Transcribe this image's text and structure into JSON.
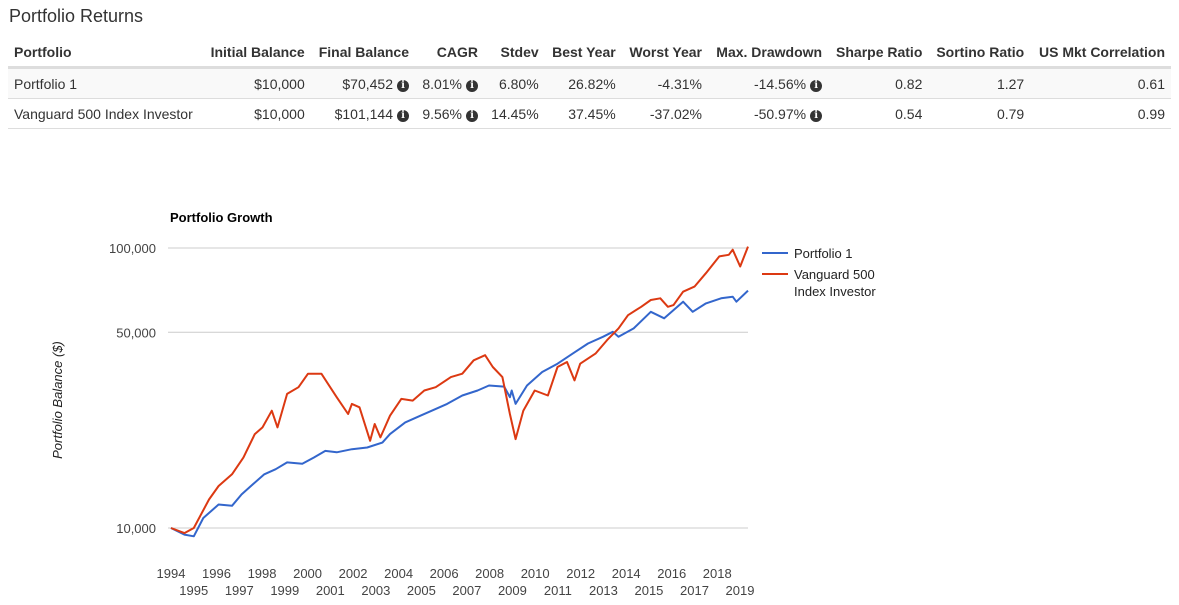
{
  "section_title": "Portfolio Returns",
  "table": {
    "headers": [
      "Portfolio",
      "Initial Balance",
      "Final Balance",
      "CAGR",
      "Stdev",
      "Best Year",
      "Worst Year",
      "Max. Drawdown",
      "Sharpe Ratio",
      "Sortino Ratio",
      "US Mkt Correlation"
    ],
    "rows": [
      {
        "portfolio": "Portfolio 1",
        "initial": "$10,000",
        "final": "$70,452",
        "cagr": "8.01%",
        "stdev": "6.80%",
        "best": "26.82%",
        "worst": "-4.31%",
        "drawdown": "-14.56%",
        "sharpe": "0.82",
        "sortino": "1.27",
        "corr": "0.61"
      },
      {
        "portfolio": "Vanguard 500 Index Investor",
        "initial": "$10,000",
        "final": "$101,144",
        "cagr": "9.56%",
        "stdev": "14.45%",
        "best": "37.45%",
        "worst": "-37.02%",
        "drawdown": "-50.97%",
        "sharpe": "0.54",
        "sortino": "0.79",
        "corr": "0.99"
      }
    ],
    "info_icon": "info-circle-icon"
  },
  "chart_data": {
    "type": "line",
    "title": "Portfolio Growth",
    "ylabel": "Portfolio Balance ($)",
    "xlabel": "",
    "yscale": "log",
    "ylim": [
      9000,
      105000
    ],
    "xlim": [
      1994,
      2019.35
    ],
    "yticks": [
      {
        "value": 10000,
        "label": "10,000"
      },
      {
        "value": 50000,
        "label": "50,000"
      },
      {
        "value": 100000,
        "label": "100,000"
      }
    ],
    "xticks": [
      "1994",
      "1995",
      "1996",
      "1997",
      "1998",
      "1999",
      "2000",
      "2001",
      "2002",
      "2003",
      "2004",
      "2005",
      "2006",
      "2007",
      "2008",
      "2009",
      "2010",
      "2011",
      "2012",
      "2013",
      "2014",
      "2015",
      "2016",
      "2017",
      "2018",
      "2019"
    ],
    "grid": true,
    "legend": "right",
    "series": [
      {
        "name": "Portfolio 1",
        "color": "#3366cc",
        "points": [
          [
            1994.0,
            10000
          ],
          [
            1994.59,
            9470
          ],
          [
            1995.0,
            9340
          ],
          [
            1995.42,
            10860
          ],
          [
            1996.09,
            12130
          ],
          [
            1996.68,
            12000
          ],
          [
            1997.1,
            13180
          ],
          [
            1997.6,
            14320
          ],
          [
            1998.1,
            15550
          ],
          [
            1998.6,
            16220
          ],
          [
            1999.1,
            17150
          ],
          [
            1999.77,
            16950
          ],
          [
            2000.27,
            17840
          ],
          [
            2000.78,
            18850
          ],
          [
            2001.28,
            18640
          ],
          [
            2001.95,
            19110
          ],
          [
            2002.62,
            19380
          ],
          [
            2003.29,
            20190
          ],
          [
            2003.62,
            21640
          ],
          [
            2004.29,
            23830
          ],
          [
            2004.96,
            25190
          ],
          [
            2005.46,
            26240
          ],
          [
            2006.13,
            27740
          ],
          [
            2006.8,
            29720
          ],
          [
            2007.47,
            30970
          ],
          [
            2007.97,
            32280
          ],
          [
            2008.64,
            32000
          ],
          [
            2008.89,
            29310
          ],
          [
            2008.97,
            30970
          ],
          [
            2009.14,
            27740
          ],
          [
            2009.64,
            32280
          ],
          [
            2010.31,
            36060
          ],
          [
            2010.98,
            38630
          ],
          [
            2011.65,
            41970
          ],
          [
            2012.32,
            45600
          ],
          [
            2012.99,
            48200
          ],
          [
            2013.41,
            50220
          ],
          [
            2013.66,
            48200
          ],
          [
            2014.33,
            51630
          ],
          [
            2015.08,
            59170
          ],
          [
            2015.67,
            56090
          ],
          [
            2016.5,
            64280
          ],
          [
            2016.92,
            59170
          ],
          [
            2017.5,
            63400
          ],
          [
            2018.17,
            66100
          ],
          [
            2018.68,
            67000
          ],
          [
            2018.84,
            64280
          ],
          [
            2019.35,
            70452
          ]
        ]
      },
      {
        "name": "Vanguard 500 Index Investor",
        "color": "#dc3912",
        "points": [
          [
            1994.0,
            10000
          ],
          [
            1994.59,
            9590
          ],
          [
            1995.0,
            10000
          ],
          [
            1995.67,
            12640
          ],
          [
            1996.09,
            14120
          ],
          [
            1996.68,
            15550
          ],
          [
            1997.18,
            17840
          ],
          [
            1997.68,
            21640
          ],
          [
            1998.02,
            22880
          ],
          [
            1998.43,
            26240
          ],
          [
            1998.68,
            22880
          ],
          [
            1999.1,
            30120
          ],
          [
            1999.6,
            31820
          ],
          [
            2000.02,
            35560
          ],
          [
            2000.61,
            35560
          ],
          [
            2001.28,
            29310
          ],
          [
            2001.78,
            25540
          ],
          [
            2001.95,
            27740
          ],
          [
            2002.28,
            26990
          ],
          [
            2002.75,
            20490
          ],
          [
            2002.95,
            23510
          ],
          [
            2003.2,
            21060
          ],
          [
            2003.62,
            25190
          ],
          [
            2004.12,
            28910
          ],
          [
            2004.62,
            28510
          ],
          [
            2005.13,
            30970
          ],
          [
            2005.63,
            31820
          ],
          [
            2006.3,
            34590
          ],
          [
            2006.8,
            35560
          ],
          [
            2007.3,
            39720
          ],
          [
            2007.8,
            41400
          ],
          [
            2008.14,
            37580
          ],
          [
            2008.56,
            34590
          ],
          [
            2008.89,
            25540
          ],
          [
            2009.14,
            20770
          ],
          [
            2009.48,
            26240
          ],
          [
            2009.98,
            30970
          ],
          [
            2010.56,
            29720
          ],
          [
            2010.98,
            37580
          ],
          [
            2011.4,
            39170
          ],
          [
            2011.73,
            33650
          ],
          [
            2011.98,
            38630
          ],
          [
            2012.65,
            41970
          ],
          [
            2013.16,
            46880
          ],
          [
            2013.66,
            51630
          ],
          [
            2014.08,
            57560
          ],
          [
            2014.66,
            61680
          ],
          [
            2015.08,
            65180
          ],
          [
            2015.5,
            66100
          ],
          [
            2015.83,
            61680
          ],
          [
            2016.08,
            62540
          ],
          [
            2016.5,
            69800
          ],
          [
            2017.0,
            72800
          ],
          [
            2017.5,
            81300
          ],
          [
            2018.09,
            93300
          ],
          [
            2018.51,
            94600
          ],
          [
            2018.68,
            98600
          ],
          [
            2019.01,
            85900
          ],
          [
            2019.35,
            101144
          ]
        ]
      }
    ],
    "legend_entries": [
      {
        "lines": [
          "Portfolio 1"
        ]
      },
      {
        "lines": [
          "Vanguard 500",
          "Index Investor"
        ]
      }
    ]
  }
}
